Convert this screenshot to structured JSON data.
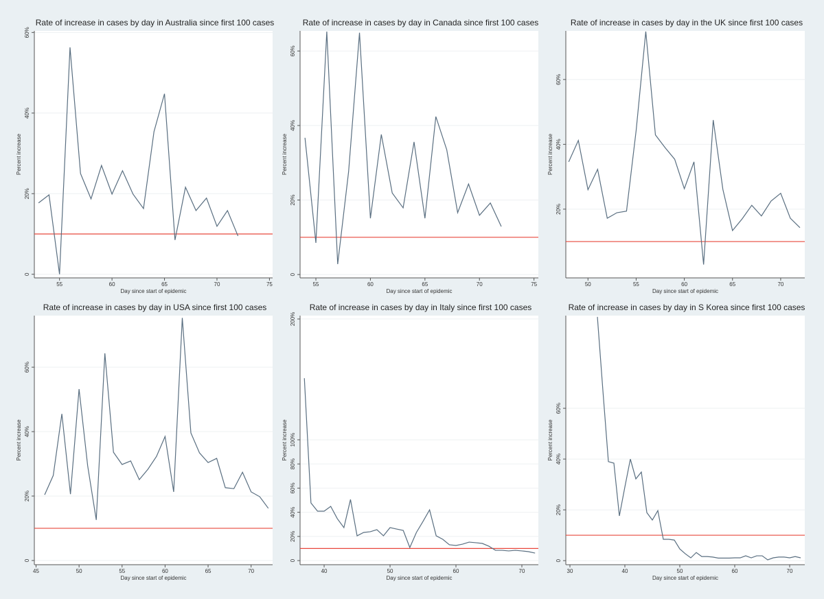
{
  "chart_data": [
    {
      "type": "line",
      "title": "Rate of increase in cases by day in Australia since first 100 cases",
      "xlabel": "Day since start of epidemic",
      "ylabel": "Percent increase",
      "x": [
        53,
        54,
        55,
        56,
        57,
        58,
        59,
        60,
        61,
        62,
        63,
        64,
        65,
        66,
        67,
        68,
        69,
        70,
        71,
        72
      ],
      "values": [
        17.7,
        19.7,
        0,
        56.3,
        25,
        18.7,
        27,
        19.9,
        25.7,
        19.9,
        16.3,
        35.4,
        44.8,
        8.5,
        21.6,
        15.8,
        18.9,
        11.9,
        15.8,
        9.5
      ],
      "color": "#596e80",
      "reference_line": 10,
      "reference_color": "#e8473b",
      "xlim": [
        52.6,
        75.3
      ],
      "xticks": [
        55,
        60,
        65,
        70,
        75
      ],
      "ylim": [
        -0.9,
        60.4
      ],
      "yticks": [
        0,
        {
          "value": 20,
          "label": "20%"
        },
        {
          "value": 40,
          "label": "40%"
        },
        {
          "value": 60,
          "label": "60%"
        }
      ],
      "grid": true
    },
    {
      "type": "line",
      "title": "Rate of increase in cases by day in Canada since first 100 cases",
      "xlabel": "Day since start of epidemic",
      "ylabel": "Percent increase",
      "x": [
        54,
        55,
        56,
        57,
        58,
        59,
        60,
        61,
        62,
        63,
        64,
        65,
        66,
        67,
        68,
        69,
        70,
        71,
        72
      ],
      "values": [
        36.7,
        8.5,
        65.2,
        2.8,
        27.6,
        64.9,
        15.1,
        37.6,
        21.9,
        17.9,
        35.6,
        15.1,
        42.4,
        33.5,
        16.6,
        24.3,
        15.9,
        19.2,
        12.9
      ],
      "color": "#596e80",
      "reference_line": 10,
      "reference_color": "#e8473b",
      "xlim": [
        53.55,
        75.4
      ],
      "xticks": [
        55,
        60,
        65,
        70,
        75
      ],
      "ylim": [
        -0.9,
        65.4
      ],
      "yticks": [
        0,
        {
          "value": 20,
          "label": "20%"
        },
        {
          "value": 40,
          "label": "40%"
        },
        {
          "value": 60,
          "label": "60%"
        }
      ],
      "grid": true
    },
    {
      "type": "line",
      "title": "Rate of increase in cases by day in the UK since first 100 cases",
      "xlabel": "Day since start of epidemic",
      "ylabel": "Percent increase",
      "x": [
        48,
        49,
        50,
        51,
        52,
        53,
        54,
        55,
        56,
        57,
        58,
        59,
        60,
        61,
        62,
        63,
        64,
        65,
        66,
        67,
        68,
        69,
        70,
        71,
        72
      ],
      "values": [
        34.6,
        41.2,
        26,
        32.3,
        17.2,
        18.9,
        19.4,
        44.3,
        74.8,
        42.9,
        39,
        35.4,
        26.3,
        34.6,
        2.9,
        47.5,
        26.1,
        13.4,
        17,
        21.2,
        17.9,
        22.5,
        24.9,
        17.2,
        14.3
      ],
      "color": "#596e80",
      "reference_line": 10,
      "reference_color": "#e8473b",
      "xlim": [
        47.7,
        72.5
      ],
      "xticks": [
        50,
        55,
        60,
        65,
        70
      ],
      "ylim": [
        -1.2,
        75
      ],
      "yticks": [
        {
          "value": 20,
          "label": "20%"
        },
        {
          "value": 40,
          "label": "40%"
        },
        {
          "value": 60,
          "label": "60%"
        }
      ],
      "grid": true
    },
    {
      "type": "line",
      "title": "Rate of increase in cases by day in USA since first 100 cases",
      "xlabel": "Day since start of epidemic",
      "ylabel": "Percent increase",
      "x": [
        46,
        47,
        48,
        49,
        50,
        51,
        52,
        53,
        54,
        55,
        56,
        57,
        58,
        59,
        60,
        61,
        62,
        63,
        64,
        65,
        66,
        67,
        68,
        69,
        70,
        71,
        72
      ],
      "values": [
        20.4,
        26.4,
        45.5,
        20.6,
        53.2,
        29.4,
        12.6,
        64.3,
        33.6,
        29.8,
        30.9,
        25.1,
        28.3,
        32.3,
        38.5,
        21.3,
        75.3,
        39.6,
        33.4,
        30.4,
        31.7,
        22.6,
        22.3,
        27.4,
        21.3,
        19.8,
        16.2
      ],
      "color": "#596e80",
      "reference_line": 10,
      "reference_color": "#e8473b",
      "xlim": [
        44.8,
        72.5
      ],
      "xticks": [
        45,
        50,
        55,
        60,
        65,
        70
      ],
      "ylim": [
        -1.3,
        76
      ],
      "yticks": [
        0,
        {
          "value": 20,
          "label": "20%"
        },
        {
          "value": 40,
          "label": "40%"
        },
        {
          "value": 60,
          "label": "60%"
        }
      ],
      "grid": true
    },
    {
      "type": "line",
      "title": "Rate of increase in cases by day in Italy since first 100 cases",
      "xlabel": "Day since start of epidemic",
      "ylabel": "Percent increase",
      "x": [
        37,
        38,
        39,
        40,
        41,
        42,
        43,
        44,
        45,
        46,
        47,
        48,
        49,
        50,
        51,
        52,
        53,
        54,
        55,
        56,
        57,
        58,
        59,
        60,
        61,
        62,
        63,
        64,
        65,
        66,
        67,
        68,
        69,
        70,
        71,
        72
      ],
      "values": [
        151,
        47.7,
        40.9,
        40.9,
        44.9,
        34.7,
        27.3,
        50.6,
        20.5,
        23.3,
        23.9,
        25.6,
        20.5,
        27.3,
        26.1,
        25,
        10.8,
        23.3,
        32.4,
        42,
        20.5,
        17.6,
        13.1,
        12.5,
        13.6,
        15.3,
        14.8,
        14.2,
        11.9,
        8.5,
        8.5,
        8,
        8.5,
        8,
        7.4,
        6.2
      ],
      "color": "#596e80",
      "reference_line": 10,
      "reference_color": "#e8473b",
      "xlim": [
        36.35,
        72.5
      ],
      "xticks": [
        40,
        50,
        60,
        70
      ],
      "ylim": [
        -3.4,
        202.8
      ],
      "yticks": [
        0,
        {
          "value": 20,
          "label": "20%"
        },
        {
          "value": 40,
          "label": "40%"
        },
        {
          "value": 60,
          "label": "60%"
        },
        {
          "value": 80,
          "label": "80%"
        },
        {
          "value": 100,
          "label": "100%"
        },
        {
          "value": 200,
          "label": "200%"
        }
      ],
      "grid": true
    },
    {
      "type": "line",
      "title": "Rate of increase in cases by day in S Korea since first 100 cases",
      "xlabel": "Day since start of epidemic",
      "ylabel": "Percent increase",
      "x": [
        35,
        36,
        37,
        38,
        39,
        40,
        41,
        42,
        43,
        44,
        45,
        46,
        47,
        48,
        49,
        50,
        51,
        52,
        53,
        54,
        55,
        56,
        57,
        58,
        59,
        60,
        61,
        62,
        63,
        64,
        65,
        66,
        67,
        68,
        69,
        70,
        71,
        72
      ],
      "values": [
        96,
        67,
        39,
        38.4,
        17.6,
        29,
        40,
        32.2,
        34.9,
        18.9,
        16,
        19.7,
        8.4,
        8.4,
        8.1,
        4.6,
        2.7,
        1.1,
        3.2,
        1.6,
        1.6,
        1.4,
        1,
        1,
        1,
        1.1,
        1.1,
        1.9,
        1.1,
        1.9,
        1.9,
        0.3,
        1.1,
        1.4,
        1.4,
        1.1,
        1.6,
        1.1
      ],
      "color": "#596e80",
      "reference_line": 10,
      "reference_color": "#e8473b",
      "xlim": [
        29.25,
        72.75
      ],
      "xticks": [
        30,
        40,
        50,
        60,
        70
      ],
      "ylim": [
        -1.6,
        96.5
      ],
      "yticks": [
        0,
        {
          "value": 20,
          "label": "20%"
        },
        {
          "value": 40,
          "label": "40%"
        },
        {
          "value": 60,
          "label": "60%"
        }
      ],
      "grid": true
    }
  ]
}
